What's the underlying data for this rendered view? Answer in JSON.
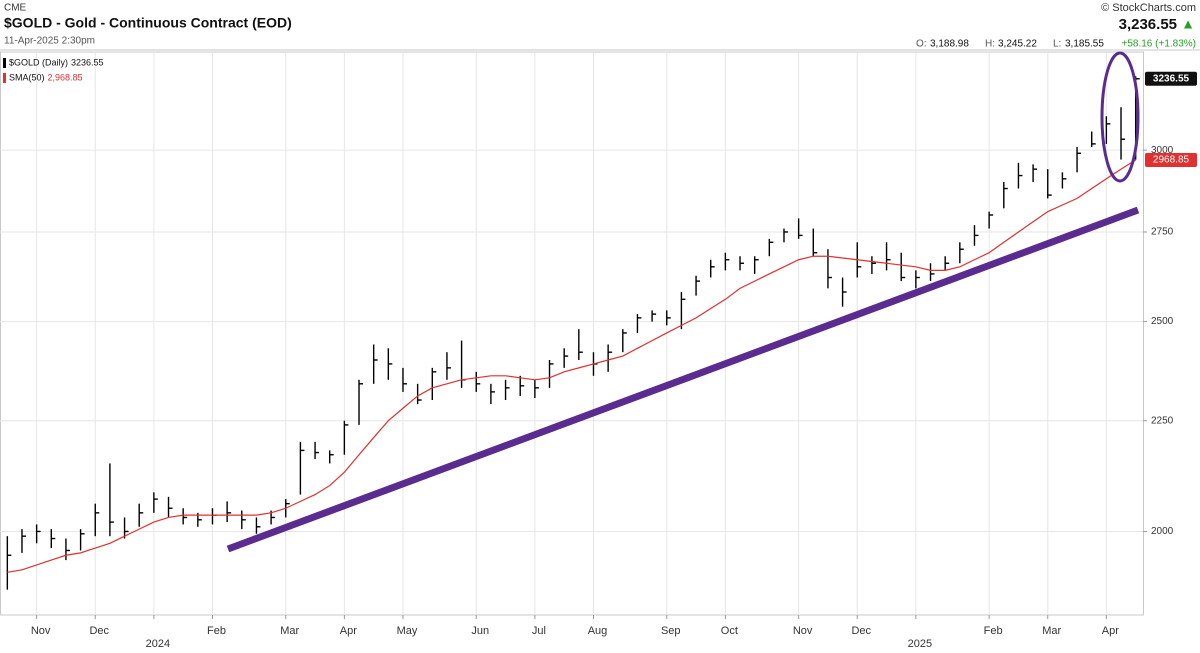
{
  "chart_data": {
    "type": "hlc",
    "title": "$GOLD - Gold - Continuous Contract (EOD)",
    "header": {
      "exchange": "CME",
      "timestamp": "11-Apr-2025 2:30pm",
      "brand": "© StockCharts.com",
      "last": "3,236.55",
      "arrow": "▲",
      "open_label": "O:",
      "open": "3,188.98",
      "high_label": "H:",
      "high": "3,245.22",
      "low_label": "L:",
      "low": "3,185.55",
      "change": "+58.16 (+1.83%)"
    },
    "log_scale": true,
    "grid": true,
    "ylim": [
      1830,
      3330
    ],
    "yticks": [
      2000,
      2250,
      2500,
      2750,
      3000
    ],
    "categories": [
      null,
      null,
      "Nov",
      null,
      null,
      null,
      "Dec",
      null,
      null,
      null,
      "2024",
      null,
      null,
      null,
      "Feb",
      null,
      null,
      null,
      null,
      "Mar",
      null,
      null,
      null,
      "Apr",
      null,
      null,
      null,
      "May",
      null,
      null,
      null,
      null,
      "Jun",
      null,
      null,
      null,
      "Jul",
      null,
      null,
      null,
      "Aug",
      null,
      null,
      null,
      null,
      "Sep",
      null,
      null,
      null,
      "Oct",
      null,
      null,
      null,
      null,
      "Nov",
      null,
      null,
      null,
      "Dec",
      null,
      null,
      null,
      "2025",
      null,
      null,
      null,
      null,
      "Feb",
      null,
      null,
      null,
      "Mar",
      null,
      null,
      null,
      "Apr",
      null,
      null
    ],
    "series": [
      {
        "name": "$GOLD (Daily)",
        "legend_value": "3236.55",
        "badge_label": "3236.55",
        "color": "#000000",
        "high": [
          1990,
          2005,
          2015,
          2005,
          1985,
          2005,
          2060,
          2150,
          2030,
          2060,
          2085,
          2075,
          2050,
          2040,
          2050,
          2065,
          2045,
          2030,
          2045,
          2070,
          2200,
          2200,
          2180,
          2250,
          2350,
          2440,
          2430,
          2380,
          2340,
          2380,
          2420,
          2450,
          2370,
          2340,
          2350,
          2360,
          2350,
          2400,
          2430,
          2480,
          2420,
          2440,
          2480,
          2520,
          2530,
          2530,
          2580,
          2625,
          2670,
          2690,
          2680,
          2680,
          2730,
          2760,
          2790,
          2760,
          2700,
          2620,
          2720,
          2680,
          2720,
          2690,
          2640,
          2660,
          2680,
          2720,
          2770,
          2810,
          2900,
          2960,
          2955,
          2940,
          2930,
          3010,
          3060,
          3110,
          3140,
          3245.22
        ],
        "low": [
          1880,
          1955,
          1975,
          1965,
          1940,
          1960,
          1990,
          1990,
          1985,
          2010,
          2040,
          2030,
          2015,
          2010,
          2015,
          2020,
          2005,
          1995,
          2015,
          2030,
          2080,
          2160,
          2150,
          2170,
          2240,
          2340,
          2350,
          2320,
          2290,
          2300,
          2350,
          2330,
          2320,
          2290,
          2300,
          2310,
          2305,
          2330,
          2380,
          2400,
          2360,
          2370,
          2420,
          2470,
          2500,
          2490,
          2480,
          2570,
          2620,
          2640,
          2640,
          2630,
          2680,
          2720,
          2730,
          2680,
          2590,
          2540,
          2620,
          2630,
          2640,
          2610,
          2590,
          2610,
          2640,
          2660,
          2710,
          2760,
          2820,
          2880,
          2900,
          2850,
          2880,
          2930,
          3010,
          3020,
          2970,
          2970
        ],
        "close": [
          1950,
          1990,
          2000,
          1985,
          1960,
          1995,
          2040,
          2020,
          2000,
          2040,
          2070,
          2050,
          2030,
          2025,
          2035,
          2040,
          2025,
          2010,
          2030,
          2060,
          2180,
          2175,
          2170,
          2240,
          2340,
          2400,
          2390,
          2340,
          2300,
          2370,
          2380,
          2350,
          2340,
          2320,
          2330,
          2335,
          2330,
          2390,
          2410,
          2420,
          2390,
          2420,
          2470,
          2510,
          2520,
          2510,
          2560,
          2610,
          2650,
          2670,
          2660,
          2670,
          2720,
          2750,
          2740,
          2690,
          2620,
          2580,
          2650,
          2660,
          2670,
          2620,
          2620,
          2630,
          2660,
          2700,
          2740,
          2800,
          2880,
          2920,
          2940,
          2860,
          2910,
          2990,
          3020,
          3085,
          3035,
          3236.55
        ]
      },
      {
        "name": "SMA(50)",
        "legend_value": "2,968.85",
        "badge_label": "2968.85",
        "color": "#e03030",
        "values": [
          1915,
          1920,
          1930,
          1940,
          1950,
          1955,
          1965,
          1975,
          1990,
          2005,
          2020,
          2030,
          2035,
          2035,
          2035,
          2035,
          2035,
          2035,
          2040,
          2050,
          2065,
          2080,
          2100,
          2130,
          2170,
          2210,
          2250,
          2280,
          2310,
          2330,
          2340,
          2350,
          2355,
          2360,
          2360,
          2355,
          2350,
          2355,
          2370,
          2380,
          2390,
          2400,
          2410,
          2430,
          2450,
          2470,
          2490,
          2510,
          2535,
          2560,
          2590,
          2610,
          2630,
          2650,
          2670,
          2680,
          2680,
          2675,
          2670,
          2665,
          2660,
          2655,
          2650,
          2640,
          2640,
          2650,
          2670,
          2690,
          2720,
          2750,
          2780,
          2810,
          2830,
          2850,
          2880,
          2910,
          2940,
          2968.85
        ]
      }
    ]
  }
}
